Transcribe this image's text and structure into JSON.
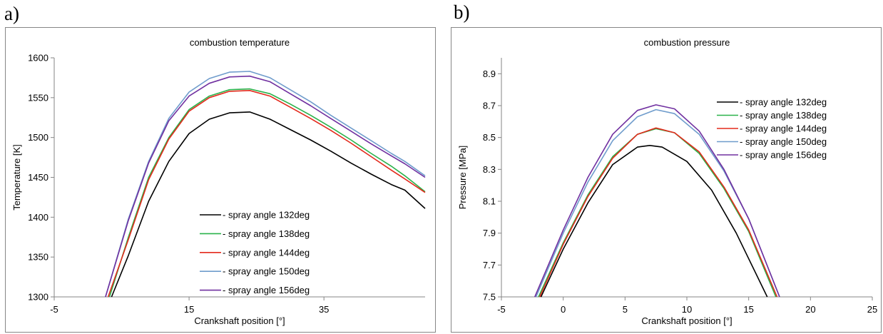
{
  "panels": {
    "a_label": "a)",
    "b_label": "b)"
  },
  "chart_data": [
    {
      "type": "line",
      "title": "combustion temperature",
      "xlabel": "Crankshaft position [°]",
      "ylabel": "Temperature [K]",
      "xlim": [
        -5,
        50
      ],
      "ylim": [
        1300,
        1600
      ],
      "xticks": [
        -5,
        15,
        35
      ],
      "yticks": [
        1300,
        1350,
        1400,
        1450,
        1500,
        1550,
        1600
      ],
      "grid": false,
      "legend_position": "bottom-right",
      "series": [
        {
          "name": "- spray angle 132deg",
          "color": "#000000",
          "x": [
            3.5,
            6,
            9,
            12,
            15,
            18,
            21,
            24,
            27,
            30,
            33,
            36,
            39,
            42,
            45,
            47,
            50
          ],
          "y": [
            1300,
            1352,
            1420,
            1470,
            1505,
            1523,
            1531,
            1532,
            1523,
            1510,
            1497,
            1483,
            1468,
            1454,
            1441,
            1434,
            1411
          ]
        },
        {
          "name": "- spray angle 138deg",
          "color": "#2ab24a",
          "x": [
            3.2,
            6,
            9,
            12,
            15,
            18,
            21,
            24,
            27,
            30,
            33,
            36,
            39,
            42,
            45,
            47,
            50
          ],
          "y": [
            1300,
            1375,
            1450,
            1500,
            1535,
            1552,
            1560,
            1561,
            1555,
            1542,
            1528,
            1513,
            1497,
            1480,
            1464,
            1452,
            1432
          ]
        },
        {
          "name": "- spray angle 144deg",
          "color": "#e32a1c",
          "x": [
            3.0,
            6,
            9,
            12,
            15,
            18,
            21,
            24,
            27,
            30,
            33,
            36,
            39,
            42,
            45,
            47,
            50
          ],
          "y": [
            1300,
            1372,
            1447,
            1498,
            1533,
            1550,
            1558,
            1559,
            1552,
            1538,
            1524,
            1509,
            1493,
            1476,
            1459,
            1448,
            1431
          ]
        },
        {
          "name": "- spray angle 150deg",
          "color": "#6f9ccc",
          "x": [
            2.6,
            6,
            9,
            12,
            15,
            18,
            21,
            24,
            27,
            30,
            33,
            36,
            39,
            42,
            45,
            47,
            50
          ],
          "y": [
            1300,
            1398,
            1470,
            1524,
            1557,
            1574,
            1582,
            1583,
            1575,
            1560,
            1545,
            1528,
            1512,
            1496,
            1480,
            1470,
            1452
          ]
        },
        {
          "name": "- spray angle 156deg",
          "color": "#7030a0",
          "x": [
            2.6,
            6,
            9,
            12,
            15,
            18,
            21,
            24,
            27,
            30,
            33,
            36,
            39,
            42,
            45,
            47,
            50
          ],
          "y": [
            1300,
            1396,
            1468,
            1521,
            1552,
            1568,
            1576,
            1577,
            1570,
            1555,
            1540,
            1524,
            1508,
            1492,
            1477,
            1467,
            1450
          ]
        }
      ]
    },
    {
      "type": "line",
      "title": "combustion pressure",
      "xlabel": "Crankshaft position [°]",
      "ylabel": "Pressure [MPa]",
      "xlim": [
        -5,
        25
      ],
      "ylim": [
        7.5,
        9.0
      ],
      "xticks": [
        -5,
        0,
        5,
        10,
        15,
        20,
        25
      ],
      "yticks": [
        7.5,
        7.7,
        7.9,
        8.1,
        8.3,
        8.5,
        8.7,
        8.9
      ],
      "grid": false,
      "legend_position": "top-right",
      "series": [
        {
          "name": "- spray angle 132deg",
          "color": "#000000",
          "x": [
            -1.8,
            0,
            2,
            4,
            6,
            7,
            8,
            10,
            12,
            14,
            16.5
          ],
          "y": [
            7.5,
            7.8,
            8.09,
            8.33,
            8.44,
            8.45,
            8.44,
            8.35,
            8.17,
            7.9,
            7.5
          ]
        },
        {
          "name": "- spray angle 138deg",
          "color": "#2ab24a",
          "x": [
            -2.0,
            0,
            2,
            4,
            6,
            7.5,
            9,
            11,
            13,
            15,
            17.2
          ],
          "y": [
            7.5,
            7.84,
            8.14,
            8.38,
            8.52,
            8.555,
            8.53,
            8.4,
            8.18,
            7.91,
            7.5
          ]
        },
        {
          "name": "- spray angle 144deg",
          "color": "#e32a1c",
          "x": [
            -1.9,
            0,
            2,
            4,
            6,
            7.5,
            9,
            11,
            13,
            15,
            17.3
          ],
          "y": [
            7.5,
            7.83,
            8.13,
            8.37,
            8.52,
            8.56,
            8.53,
            8.41,
            8.19,
            7.92,
            7.5
          ]
        },
        {
          "name": "- spray angle 150deg",
          "color": "#6f9ccc",
          "x": [
            -2.2,
            0,
            2,
            4,
            6,
            7.5,
            9,
            11,
            13,
            15,
            17.5
          ],
          "y": [
            7.5,
            7.9,
            8.22,
            8.48,
            8.63,
            8.675,
            8.65,
            8.52,
            8.29,
            7.99,
            7.5
          ]
        },
        {
          "name": "- spray angle 156deg",
          "color": "#7030a0",
          "x": [
            -2.3,
            0,
            2,
            4,
            6,
            7.5,
            9,
            11,
            13,
            15,
            17.5
          ],
          "y": [
            7.5,
            7.92,
            8.25,
            8.52,
            8.67,
            8.705,
            8.68,
            8.54,
            8.3,
            7.99,
            7.5
          ]
        }
      ]
    }
  ]
}
